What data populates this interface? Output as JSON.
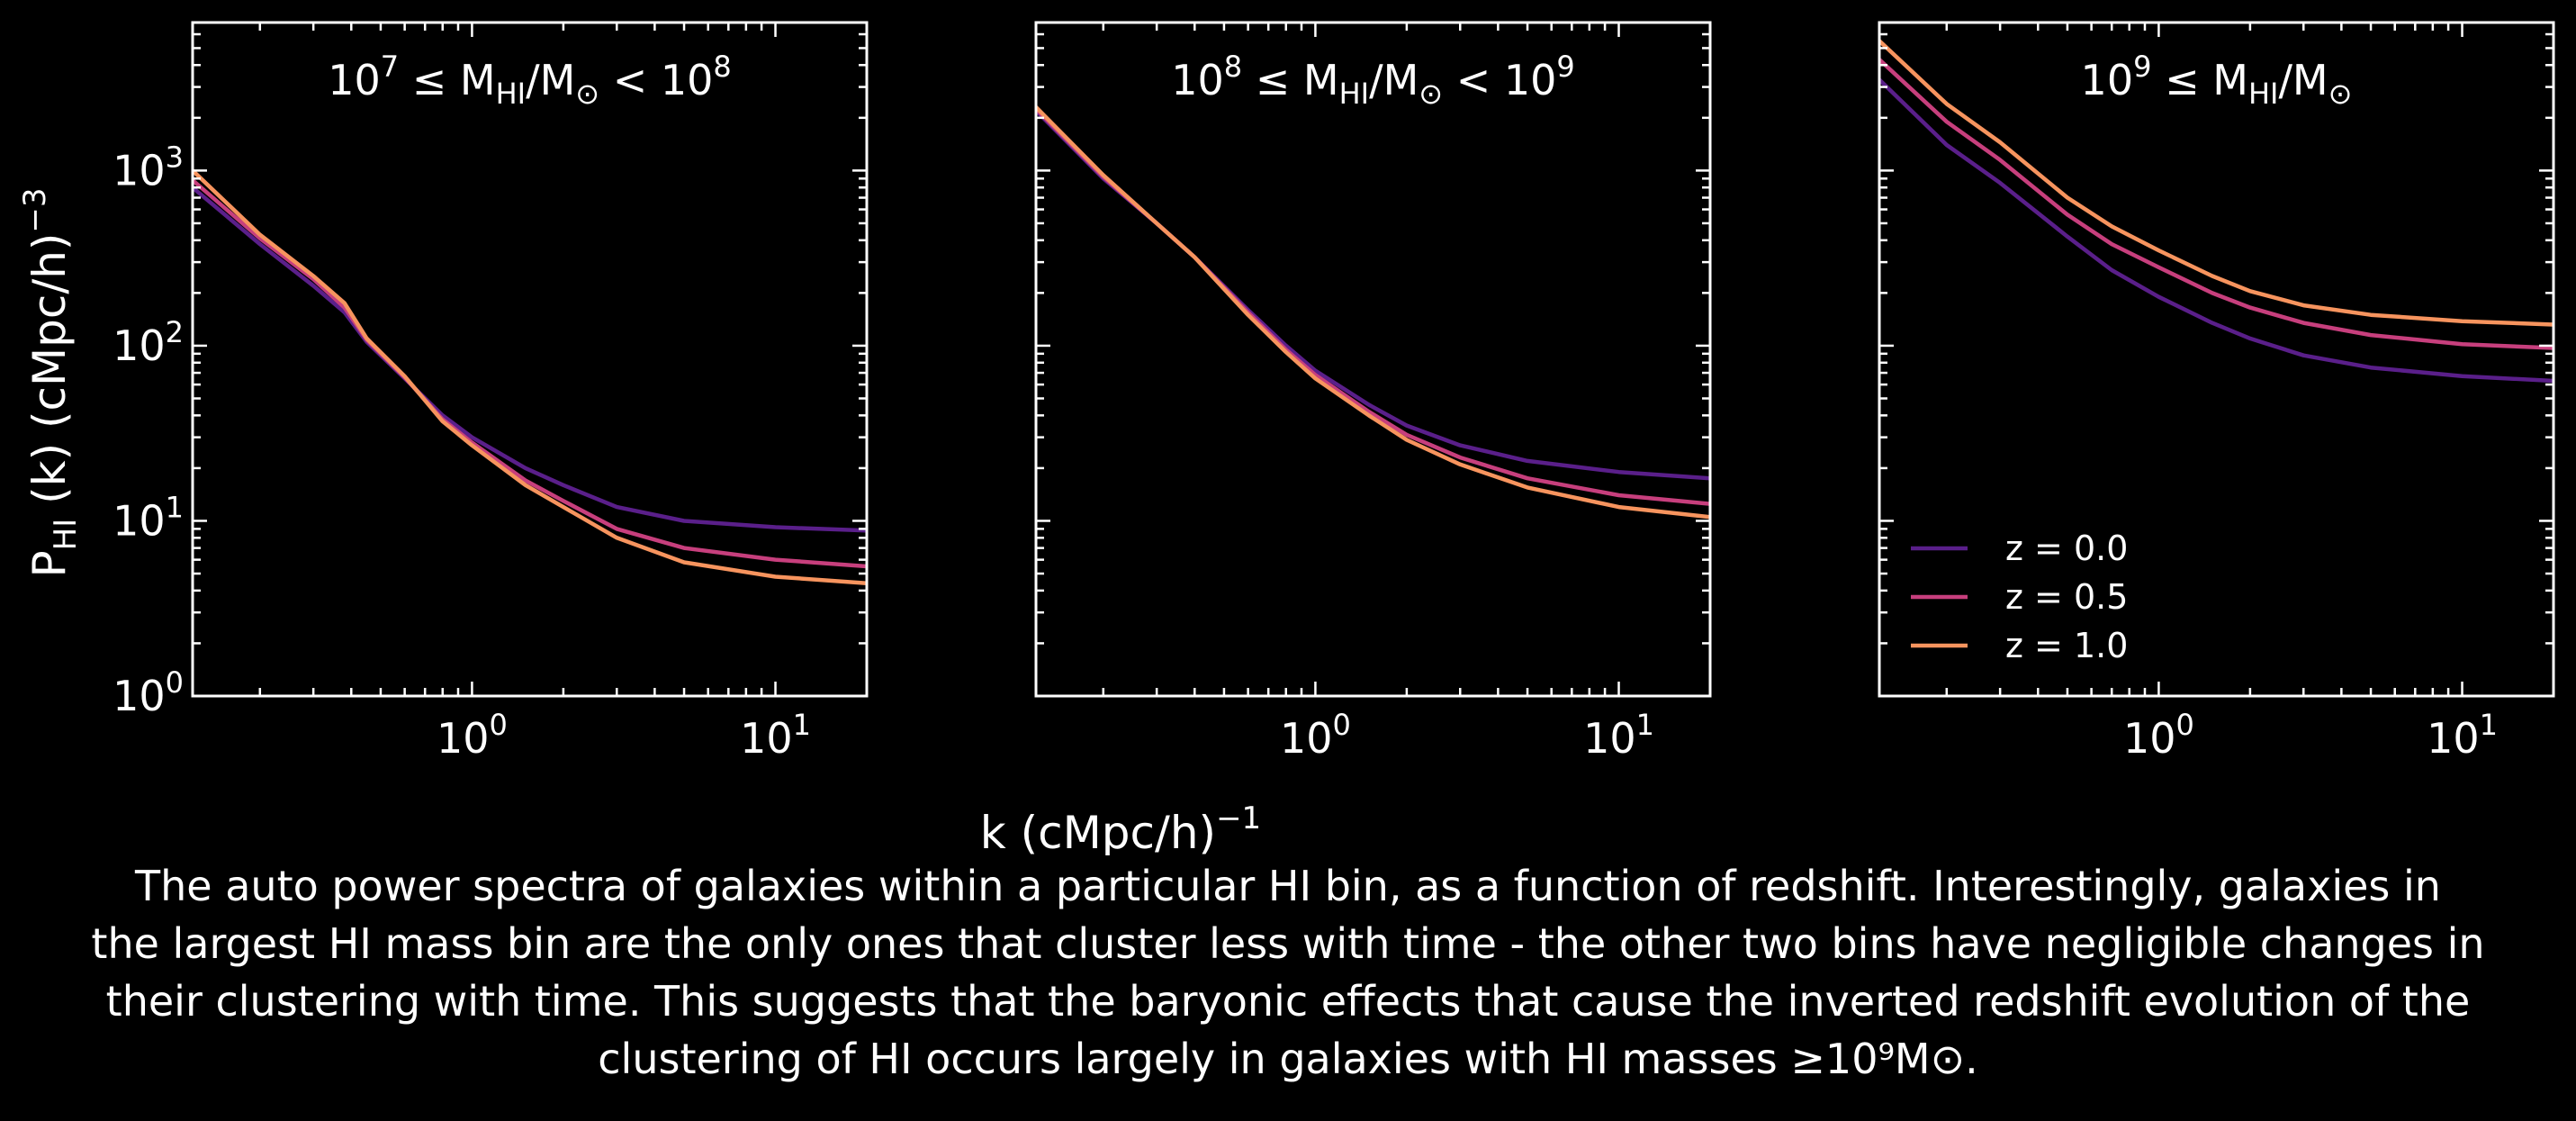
{
  "figure": {
    "xlabel": "k (cMpc/h)",
    "xlabel_exp": "−1",
    "ylabel": "P",
    "ylabel_sub": "HI",
    "ylabel_rest": "(k) (cMpc/h)",
    "ylabel_exp": "−3"
  },
  "caption": {
    "line1": "The auto power spectra of galaxies within a particular HI bin, as a function of redshift. Interestingly, galaxies in",
    "line2": "the largest HI mass bin are the only ones that cluster less with time - the other two bins have negligible changes in",
    "line3": "their clustering with time. This suggests that the baryonic effects that cause the inverted redshift evolution of the",
    "line4": "clustering of HI occurs largely in galaxies with HI masses ≥10⁹M⊙."
  },
  "chart_data": [
    {
      "type": "line",
      "title": "10^7 ≤ M_HI/M_⊙ < 10^8",
      "x_scale": "log",
      "y_scale": "log",
      "xlim": [
        0.12,
        20
      ],
      "ylim": [
        1,
        7000
      ],
      "x_ticks": [
        "10^0",
        "10^1"
      ],
      "y_ticks": [
        "10^0",
        "10^1",
        "10^2",
        "10^3"
      ],
      "legend": false,
      "series": [
        {
          "name": "z = 0.0",
          "color": "#5a1f8a",
          "x": [
            0.12,
            0.2,
            0.3,
            0.38,
            0.45,
            0.6,
            0.8,
            1.0,
            1.5,
            2.0,
            3.0,
            5.0,
            10.0,
            20.0
          ],
          "y": [
            800,
            380,
            220,
            155,
            105,
            65,
            40,
            30,
            20,
            16,
            12,
            10,
            9.2,
            8.8
          ]
        },
        {
          "name": "z = 0.5",
          "color": "#c73f7d",
          "x": [
            0.12,
            0.2,
            0.3,
            0.38,
            0.45,
            0.6,
            0.8,
            1.0,
            1.5,
            2.0,
            3.0,
            5.0,
            10.0,
            20.0
          ],
          "y": [
            880,
            410,
            240,
            165,
            108,
            66,
            38,
            28,
            17,
            13,
            9.0,
            7.0,
            6.0,
            5.5
          ]
        },
        {
          "name": "z = 1.0",
          "color": "#f7945e",
          "x": [
            0.12,
            0.2,
            0.3,
            0.38,
            0.45,
            0.6,
            0.8,
            1.0,
            1.5,
            2.0,
            3.0,
            5.0,
            10.0,
            20.0
          ],
          "y": [
            1000,
            430,
            250,
            175,
            110,
            67,
            37,
            27,
            16,
            12,
            8.0,
            5.8,
            4.8,
            4.4
          ]
        }
      ]
    },
    {
      "type": "line",
      "title": "10^8 ≤ M_HI/M_⊙ < 10^9",
      "x_scale": "log",
      "y_scale": "log",
      "xlim": [
        0.12,
        20
      ],
      "ylim": [
        1,
        7000
      ],
      "x_ticks": [
        "10^0",
        "10^1"
      ],
      "y_ticks": [],
      "legend": false,
      "series": [
        {
          "name": "z = 0.0",
          "color": "#5a1f8a",
          "x": [
            0.12,
            0.2,
            0.3,
            0.4,
            0.6,
            0.8,
            1.0,
            1.5,
            2.0,
            3.0,
            5.0,
            10.0,
            20.0
          ],
          "y": [
            2200,
            900,
            500,
            320,
            160,
            100,
            72,
            46,
            35,
            27,
            22,
            19,
            17.5
          ]
        },
        {
          "name": "z = 0.5",
          "color": "#c73f7d",
          "x": [
            0.12,
            0.2,
            0.3,
            0.4,
            0.6,
            0.8,
            1.0,
            1.5,
            2.0,
            3.0,
            5.0,
            10.0,
            20.0
          ],
          "y": [
            2250,
            920,
            500,
            320,
            155,
            95,
            68,
            42,
            31,
            23,
            17.5,
            14,
            12.5
          ]
        },
        {
          "name": "z = 1.0",
          "color": "#f7945e",
          "x": [
            0.12,
            0.2,
            0.3,
            0.4,
            0.6,
            0.8,
            1.0,
            1.5,
            2.0,
            3.0,
            5.0,
            10.0,
            20.0
          ],
          "y": [
            2300,
            940,
            500,
            320,
            150,
            92,
            65,
            40,
            29,
            21,
            15.5,
            12,
            10.5
          ]
        }
      ]
    },
    {
      "type": "line",
      "title": "10^9 ≤ M_HI/M_⊙",
      "x_scale": "log",
      "y_scale": "log",
      "xlim": [
        0.12,
        20
      ],
      "ylim": [
        1,
        7000
      ],
      "x_ticks": [
        "10^0",
        "10^1"
      ],
      "y_ticks": [],
      "legend": true,
      "legend_position": "lower-left",
      "series": [
        {
          "name": "z = 0.0",
          "color": "#5a1f8a",
          "x": [
            0.12,
            0.2,
            0.3,
            0.5,
            0.7,
            1.0,
            1.5,
            2.0,
            3.0,
            5.0,
            10.0,
            20.0
          ],
          "y": [
            3300,
            1400,
            850,
            420,
            270,
            190,
            135,
            110,
            88,
            75,
            67,
            63
          ]
        },
        {
          "name": "z = 0.5",
          "color": "#c73f7d",
          "x": [
            0.12,
            0.2,
            0.3,
            0.5,
            0.7,
            1.0,
            1.5,
            2.0,
            3.0,
            5.0,
            10.0,
            20.0
          ],
          "y": [
            4300,
            1900,
            1150,
            560,
            380,
            280,
            200,
            165,
            135,
            115,
            102,
            97
          ]
        },
        {
          "name": "z = 1.0",
          "color": "#f7945e",
          "x": [
            0.12,
            0.2,
            0.3,
            0.5,
            0.7,
            1.0,
            1.5,
            2.0,
            3.0,
            5.0,
            10.0,
            20.0
          ],
          "y": [
            5500,
            2400,
            1450,
            700,
            480,
            350,
            250,
            205,
            170,
            150,
            138,
            132
          ]
        }
      ]
    }
  ]
}
